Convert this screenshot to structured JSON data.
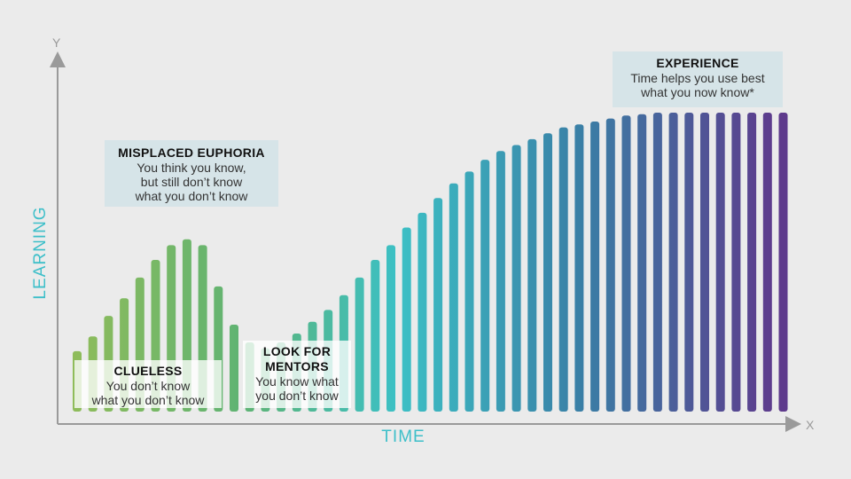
{
  "chart_data": {
    "type": "bar",
    "xlabel": "TIME",
    "ylabel": "LEARNING",
    "x_axis_letter": "X",
    "y_axis_letter": "Y",
    "values": [
      19,
      24,
      31,
      37,
      44,
      50,
      55,
      57,
      55,
      41,
      28,
      22,
      20,
      22,
      25,
      29,
      33,
      38,
      44,
      50,
      55,
      61,
      66,
      71,
      76,
      80,
      84,
      87,
      89,
      91,
      93,
      95,
      96,
      97,
      98,
      99,
      99.5,
      100,
      100,
      100,
      100,
      100,
      100,
      100,
      100,
      100
    ],
    "colors": [
      "#8fbc5a",
      "#3cc0c5",
      "#5e3a8c"
    ],
    "annotations": [
      {
        "id": "euphoria",
        "title": "MISPLACED EUPHORIA",
        "lines": [
          "You think you know,",
          "but still don’t know",
          "what you don’t know"
        ]
      },
      {
        "id": "experience",
        "title": "EXPERIENCE",
        "lines": [
          "Time helps you use best",
          "what you now know*"
        ]
      },
      {
        "id": "clueless",
        "title": "CLUELESS",
        "lines": [
          "You don’t know",
          "what you don’t know"
        ]
      },
      {
        "id": "mentors",
        "title": "LOOK FOR MENTORS",
        "lines": [
          "You know what",
          "you don’t know"
        ]
      }
    ]
  }
}
